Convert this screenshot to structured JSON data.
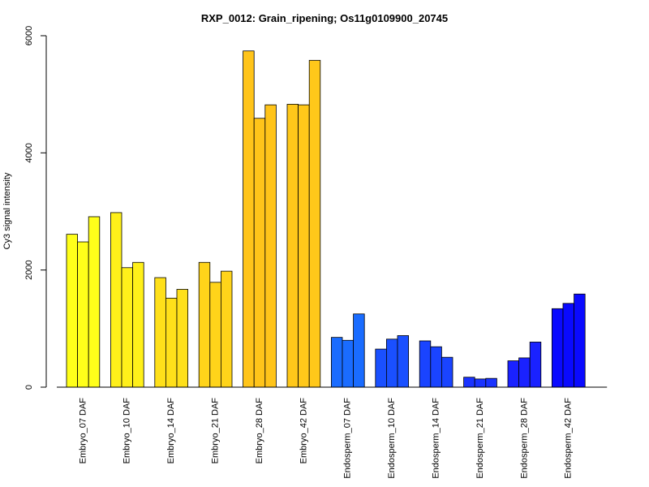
{
  "chart_data": {
    "type": "bar",
    "title": "RXP_0012: Grain_ripening; Os11g0109900_20745",
    "xlabel": "",
    "ylabel": "Cy3 signal intensity",
    "ylim": [
      0,
      6000
    ],
    "yticks": [
      0,
      2000,
      4000,
      6000
    ],
    "grid": false,
    "replicates_per_category": 3,
    "categories": [
      "Embryo_07 DAF",
      "Embryo_10 DAF",
      "Embryo_14 DAF",
      "Embryo_21 DAF",
      "Embryo_28 DAF",
      "Embryo_42 DAF",
      "Endosperm_07 DAF",
      "Endosperm_10 DAF",
      "Endosperm_14 DAF",
      "Endosperm_21 DAF",
      "Endosperm_28 DAF",
      "Endosperm_42 DAF"
    ],
    "values": [
      [
        2610,
        2480,
        2910
      ],
      [
        2980,
        2040,
        2130
      ],
      [
        1870,
        1520,
        1670
      ],
      [
        2130,
        1790,
        1980
      ],
      [
        5740,
        4590,
        4820
      ],
      [
        4830,
        4820,
        5580
      ],
      [
        850,
        800,
        1250
      ],
      [
        650,
        820,
        880
      ],
      [
        790,
        690,
        510
      ],
      [
        170,
        140,
        150
      ],
      [
        450,
        500,
        770
      ],
      [
        1340,
        1430,
        1590
      ]
    ],
    "colors": [
      "#ffff1a",
      "#fff01a",
      "#ffe01a",
      "#ffd41a",
      "#ffc41a",
      "#ffc81a",
      "#1a6cff",
      "#1a50ff",
      "#1a44ff",
      "#1a33ff",
      "#1a22ff",
      "#0a0aff"
    ]
  }
}
